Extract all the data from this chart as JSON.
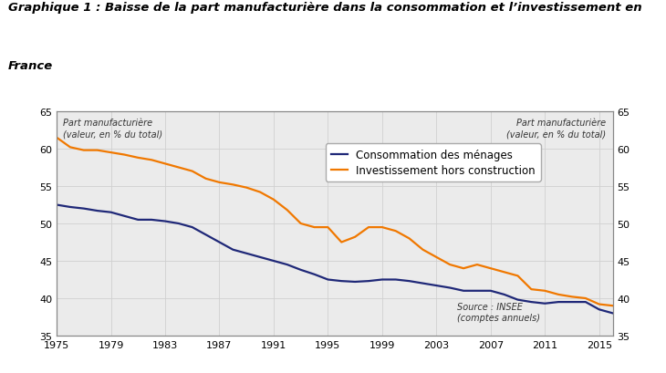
{
  "title_line1": "Graphique 1 : Baisse de la part manufacturière dans la consommation et l’investissement en",
  "title_line2": "France",
  "ylabel_left": "Part manufacturière\n(valeur, en % du total)",
  "ylabel_right": "Part manufacturière\n(valeur, en % du total)",
  "source": "Source : INSEE\n(comptes annuels)",
  "ylim": [
    35,
    65
  ],
  "yticks": [
    35,
    40,
    45,
    50,
    55,
    60,
    65
  ],
  "xlim": [
    1975,
    2016
  ],
  "xticks": [
    1975,
    1979,
    1983,
    1987,
    1991,
    1995,
    1999,
    2003,
    2007,
    2011,
    2015
  ],
  "legend_conso": "Consommation des ménages",
  "legend_invest": "Investissement hors construction",
  "color_conso": "#1f2878",
  "color_invest": "#f07800",
  "background_color": "#ebebeb",
  "grid_color": "#d0d0d0",
  "years_conso": [
    1975,
    1976,
    1977,
    1978,
    1979,
    1980,
    1981,
    1982,
    1983,
    1984,
    1985,
    1986,
    1987,
    1988,
    1989,
    1990,
    1991,
    1992,
    1993,
    1994,
    1995,
    1996,
    1997,
    1998,
    1999,
    2000,
    2001,
    2002,
    2003,
    2004,
    2005,
    2006,
    2007,
    2008,
    2009,
    2010,
    2011,
    2012,
    2013,
    2014,
    2015,
    2016
  ],
  "values_conso": [
    52.5,
    52.2,
    52.0,
    51.7,
    51.5,
    51.0,
    50.5,
    50.5,
    50.3,
    50.0,
    49.5,
    48.5,
    47.5,
    46.5,
    46.0,
    45.5,
    45.0,
    44.5,
    43.8,
    43.2,
    42.5,
    42.3,
    42.2,
    42.3,
    42.5,
    42.5,
    42.3,
    42.0,
    41.7,
    41.4,
    41.0,
    41.0,
    41.0,
    40.5,
    39.8,
    39.5,
    39.3,
    39.5,
    39.5,
    39.5,
    38.5,
    38.0
  ],
  "years_invest": [
    1975,
    1976,
    1977,
    1978,
    1979,
    1980,
    1981,
    1982,
    1983,
    1984,
    1985,
    1986,
    1987,
    1988,
    1989,
    1990,
    1991,
    1992,
    1993,
    1994,
    1995,
    1996,
    1997,
    1998,
    1999,
    2000,
    2001,
    2002,
    2003,
    2004,
    2005,
    2006,
    2007,
    2008,
    2009,
    2010,
    2011,
    2012,
    2013,
    2014,
    2015,
    2016
  ],
  "values_invest": [
    61.5,
    60.2,
    59.8,
    59.8,
    59.5,
    59.2,
    58.8,
    58.5,
    58.0,
    57.5,
    57.0,
    56.0,
    55.5,
    55.2,
    54.8,
    54.2,
    53.2,
    51.8,
    50.0,
    49.5,
    49.5,
    47.5,
    48.2,
    49.5,
    49.5,
    49.0,
    48.0,
    46.5,
    45.5,
    44.5,
    44.0,
    44.5,
    44.0,
    43.5,
    43.0,
    41.2,
    41.0,
    40.5,
    40.2,
    40.0,
    39.2,
    39.0
  ],
  "title_fontsize": 9.5,
  "tick_fontsize": 8.0,
  "legend_fontsize": 8.5,
  "annot_fontsize": 7.0
}
